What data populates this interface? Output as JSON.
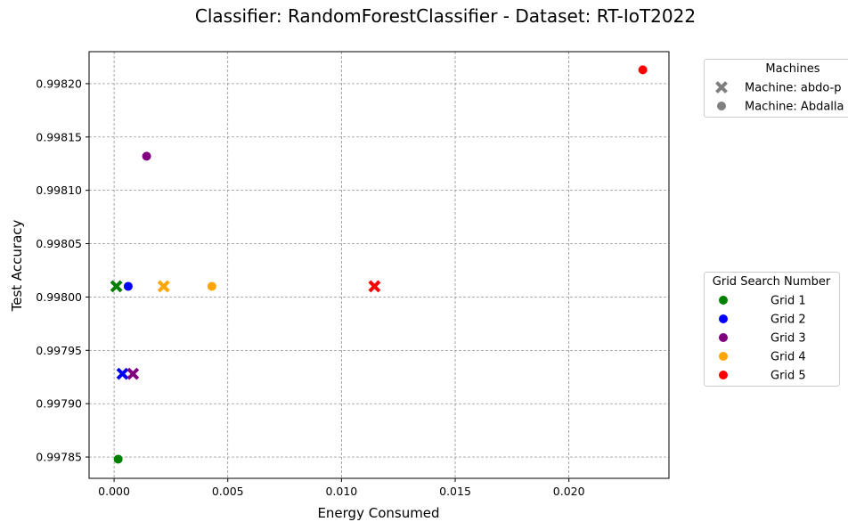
{
  "chart_data": {
    "type": "scatter",
    "title": "Classifier: RandomForestClassifier - Dataset: RT-IoT2022",
    "xlabel": "Energy Consumed",
    "ylabel": "Test Accuracy",
    "xlim": [
      -0.0011,
      0.0244
    ],
    "ylim": [
      0.99783,
      0.99823
    ],
    "xticks": [
      0.0,
      0.005,
      0.01,
      0.015,
      0.02
    ],
    "xtick_labels": [
      "0.000",
      "0.005",
      "0.010",
      "0.015",
      "0.020"
    ],
    "yticks": [
      0.99785,
      0.9979,
      0.99795,
      0.998,
      0.99805,
      0.9981,
      0.99815,
      0.9982
    ],
    "ytick_labels": [
      "0.99785",
      "0.99790",
      "0.99795",
      "0.99800",
      "0.99805",
      "0.99810",
      "0.99815",
      "0.99820"
    ],
    "grid": true,
    "legend_machines": {
      "title": "Machines",
      "placement": "outside-right-top",
      "entries": [
        {
          "label": "Machine: abdo-p",
          "marker": "x"
        },
        {
          "label": "Machine: Abdalla",
          "marker": "circle"
        }
      ]
    },
    "legend_grids": {
      "title": "Grid Search Number",
      "placement": "outside-right-middle",
      "entries": [
        {
          "label": "Grid 1",
          "color": "#008000"
        },
        {
          "label": "Grid 2",
          "color": "#0000ff"
        },
        {
          "label": "Grid 3",
          "color": "#800080"
        },
        {
          "label": "Grid 4",
          "color": "#ffa500"
        },
        {
          "label": "Grid 5",
          "color": "#ff0000"
        }
      ]
    },
    "points": [
      {
        "grid": "Grid 1",
        "machine": "x",
        "x": 0.0001,
        "y": 0.99801
      },
      {
        "grid": "Grid 1",
        "machine": "circle",
        "x": 0.00018,
        "y": 0.997848
      },
      {
        "grid": "Grid 2",
        "machine": "x",
        "x": 0.00037,
        "y": 0.997928
      },
      {
        "grid": "Grid 2",
        "machine": "circle",
        "x": 0.00062,
        "y": 0.99801
      },
      {
        "grid": "Grid 3",
        "machine": "x",
        "x": 0.00083,
        "y": 0.997928
      },
      {
        "grid": "Grid 3",
        "machine": "circle",
        "x": 0.00143,
        "y": 0.998132
      },
      {
        "grid": "Grid 4",
        "machine": "x",
        "x": 0.00218,
        "y": 0.99801
      },
      {
        "grid": "Grid 4",
        "machine": "circle",
        "x": 0.0043,
        "y": 0.99801
      },
      {
        "grid": "Grid 5",
        "machine": "x",
        "x": 0.01145,
        "y": 0.99801
      },
      {
        "grid": "Grid 5",
        "machine": "circle",
        "x": 0.02325,
        "y": 0.998213
      }
    ]
  }
}
